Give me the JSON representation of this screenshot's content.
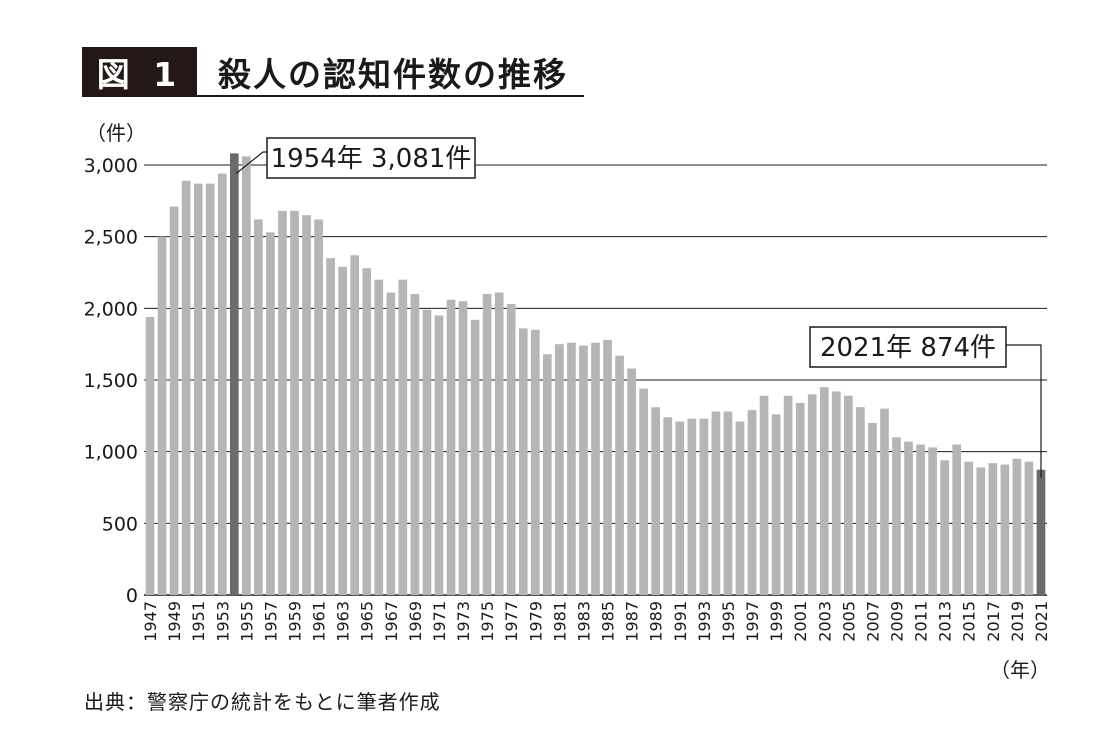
{
  "header": {
    "label": "図 1",
    "title": "殺人の認知件数の推移"
  },
  "source": "出典：警察庁の統計をもとに筆者作成",
  "colors": {
    "bar": "#b5b5b5",
    "highlight": "#6b6b6b",
    "grid": "#231815",
    "header_bg": "#231815"
  },
  "chart_data": {
    "type": "bar",
    "title": "殺人の認知件数の推移",
    "y_unit_label": "（件）",
    "x_unit_label": "（年）",
    "ylim": [
      0,
      3000
    ],
    "yticks": [
      0,
      500,
      1000,
      1500,
      2000,
      2500,
      3000
    ],
    "ytick_labels": [
      "0",
      "500",
      "1,000",
      "1,500",
      "2,000",
      "2,500",
      "3,000"
    ],
    "grid": true,
    "x": [
      1947,
      1948,
      1949,
      1950,
      1951,
      1952,
      1953,
      1954,
      1955,
      1956,
      1957,
      1958,
      1959,
      1960,
      1961,
      1962,
      1963,
      1964,
      1965,
      1966,
      1967,
      1968,
      1969,
      1970,
      1971,
      1972,
      1973,
      1974,
      1975,
      1976,
      1977,
      1978,
      1979,
      1980,
      1981,
      1982,
      1983,
      1984,
      1985,
      1986,
      1987,
      1988,
      1989,
      1990,
      1991,
      1992,
      1993,
      1994,
      1995,
      1996,
      1997,
      1998,
      1999,
      2000,
      2001,
      2002,
      2003,
      2004,
      2005,
      2006,
      2007,
      2008,
      2009,
      2010,
      2011,
      2012,
      2013,
      2014,
      2015,
      2016,
      2017,
      2018,
      2019,
      2020,
      2021
    ],
    "xtick_labels": [
      "1947",
      "1949",
      "1951",
      "1953",
      "1955",
      "1957",
      "1959",
      "1961",
      "1963",
      "1965",
      "1967",
      "1969",
      "1971",
      "1973",
      "1975",
      "1977",
      "1979",
      "1981",
      "1983",
      "1985",
      "1987",
      "1989",
      "1991",
      "1993",
      "1995",
      "1997",
      "1999",
      "2001",
      "2003",
      "2005",
      "2007",
      "2009",
      "2011",
      "2013",
      "2015",
      "2017",
      "2019",
      "2021"
    ],
    "values": [
      1940,
      2500,
      2710,
      2890,
      2870,
      2870,
      2940,
      3081,
      3060,
      2620,
      2530,
      2680,
      2680,
      2650,
      2620,
      2350,
      2290,
      2370,
      2280,
      2200,
      2110,
      2200,
      2100,
      1990,
      1950,
      2060,
      2050,
      1920,
      2100,
      2110,
      2030,
      1860,
      1850,
      1680,
      1750,
      1760,
      1740,
      1760,
      1780,
      1670,
      1580,
      1440,
      1310,
      1240,
      1210,
      1230,
      1230,
      1280,
      1280,
      1210,
      1290,
      1390,
      1260,
      1390,
      1340,
      1400,
      1450,
      1420,
      1390,
      1310,
      1200,
      1300,
      1100,
      1070,
      1050,
      1030,
      940,
      1050,
      930,
      890,
      920,
      910,
      950,
      930,
      874
    ],
    "highlights": [
      1954,
      2021
    ],
    "annotations": [
      {
        "year": 1954,
        "text": "1954年 3,081件"
      },
      {
        "year": 2021,
        "text": "2021年 874件"
      }
    ]
  }
}
